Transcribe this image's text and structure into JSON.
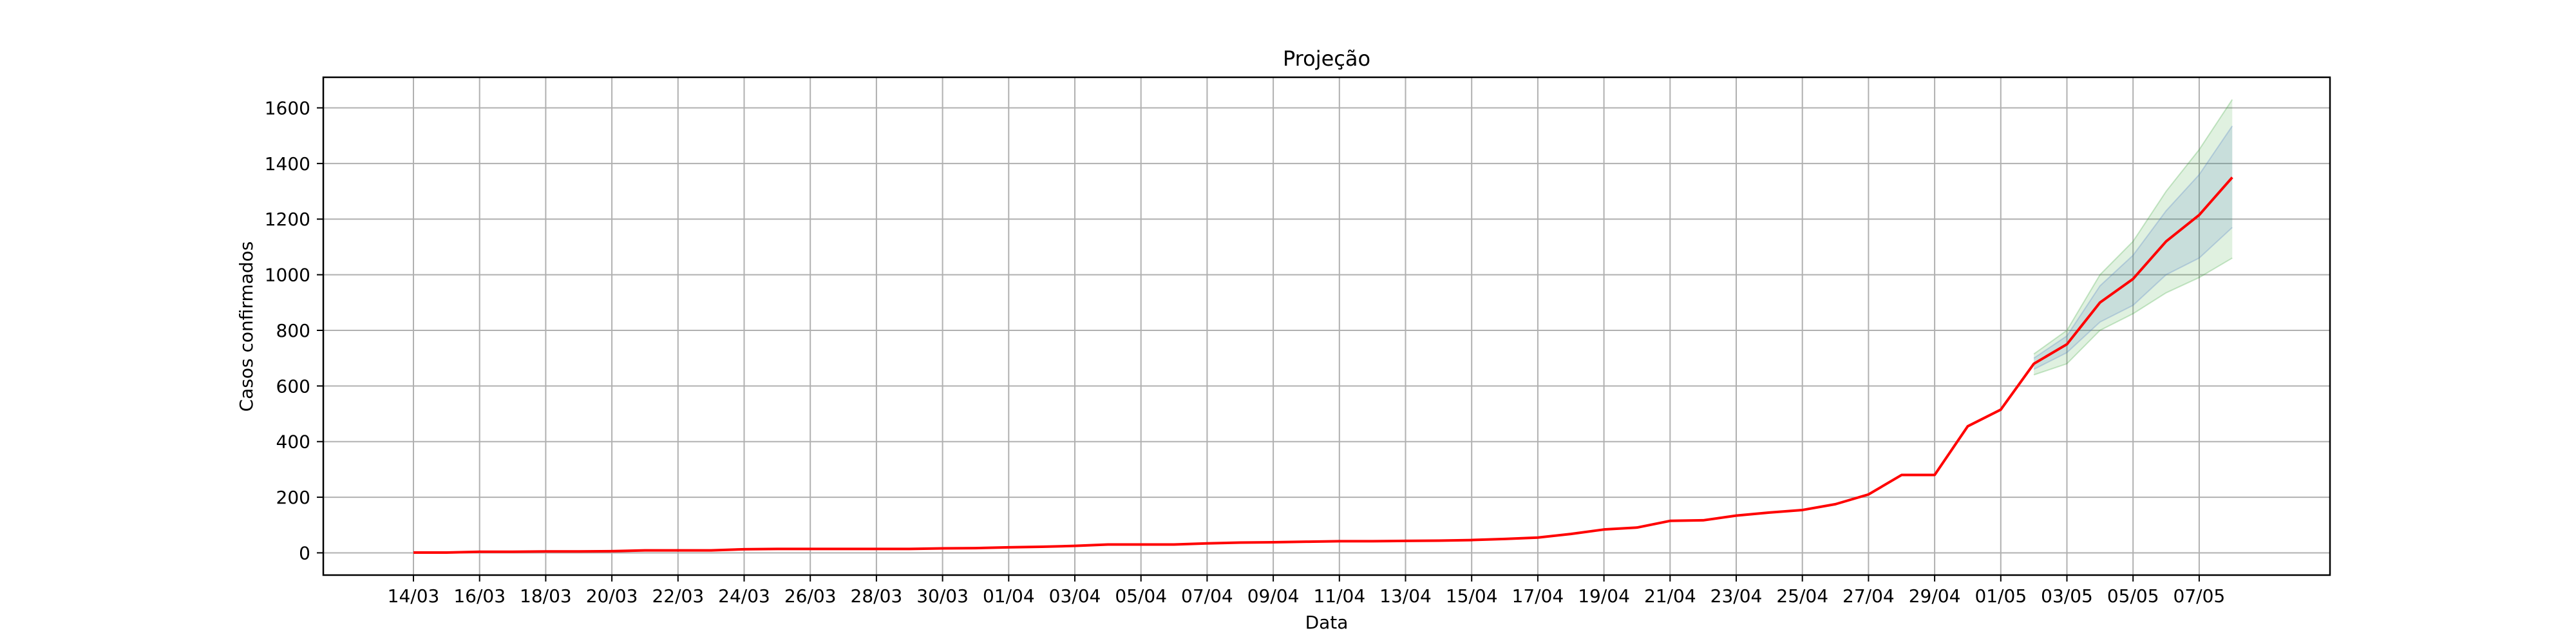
{
  "chart_data": {
    "type": "line",
    "title": "Projeção",
    "xlabel": "Data",
    "ylabel": "Casos confirmados",
    "ylim": [
      -80,
      1710
    ],
    "yticks": [
      0,
      200,
      400,
      600,
      800,
      1000,
      1200,
      1400,
      1600
    ],
    "grid": true,
    "x": [
      "14/03",
      "15/03",
      "16/03",
      "17/03",
      "18/03",
      "19/03",
      "20/03",
      "21/03",
      "22/03",
      "23/03",
      "24/03",
      "25/03",
      "26/03",
      "27/03",
      "28/03",
      "29/03",
      "30/03",
      "31/03",
      "01/04",
      "02/04",
      "03/04",
      "04/04",
      "05/04",
      "06/04",
      "07/04",
      "08/04",
      "09/04",
      "10/04",
      "11/04",
      "12/04",
      "13/04",
      "14/04",
      "15/04",
      "16/04",
      "17/04",
      "18/04",
      "19/04",
      "20/04",
      "21/04",
      "22/04",
      "23/04",
      "24/04",
      "25/04",
      "26/04",
      "27/04",
      "28/04",
      "29/04",
      "30/04",
      "01/05",
      "02/05",
      "03/05",
      "04/05",
      "05/05",
      "06/05",
      "07/05",
      "08/05"
    ],
    "xticks": [
      "14/03",
      "16/03",
      "18/03",
      "20/03",
      "22/03",
      "24/03",
      "26/03",
      "28/03",
      "30/03",
      "01/04",
      "03/04",
      "05/04",
      "07/04",
      "09/04",
      "11/04",
      "13/04",
      "15/04",
      "17/04",
      "19/04",
      "21/04",
      "23/04",
      "25/04",
      "27/04",
      "29/04",
      "01/05",
      "03/05",
      "05/05",
      "07/05"
    ],
    "series": [
      {
        "color": "#ff0000",
        "values": [
          1,
          1,
          4,
          4,
          5,
          5,
          6,
          9,
          9,
          9,
          13,
          14,
          14,
          14,
          14,
          14,
          16,
          17,
          20,
          22,
          25,
          30,
          30,
          30,
          34,
          37,
          38,
          40,
          42,
          42,
          43,
          44,
          46,
          50,
          55,
          68,
          84,
          91,
          115,
          117,
          134,
          145,
          154,
          175,
          210,
          280,
          280,
          455,
          515,
          680,
          750,
          900,
          985,
          1120,
          1215,
          1350
        ]
      }
    ],
    "bands": [
      {
        "color": "#2ca02c",
        "start_index": 49,
        "lower": [
          640,
          680,
          800,
          860,
          935,
          990,
          1060
        ],
        "upper": [
          715,
          800,
          1000,
          1120,
          1300,
          1450,
          1630
        ]
      },
      {
        "color": "#4472c4",
        "start_index": 49,
        "lower": [
          660,
          720,
          830,
          890,
          1000,
          1060,
          1170
        ],
        "upper": [
          700,
          780,
          960,
          1070,
          1230,
          1360,
          1535
        ]
      }
    ]
  }
}
